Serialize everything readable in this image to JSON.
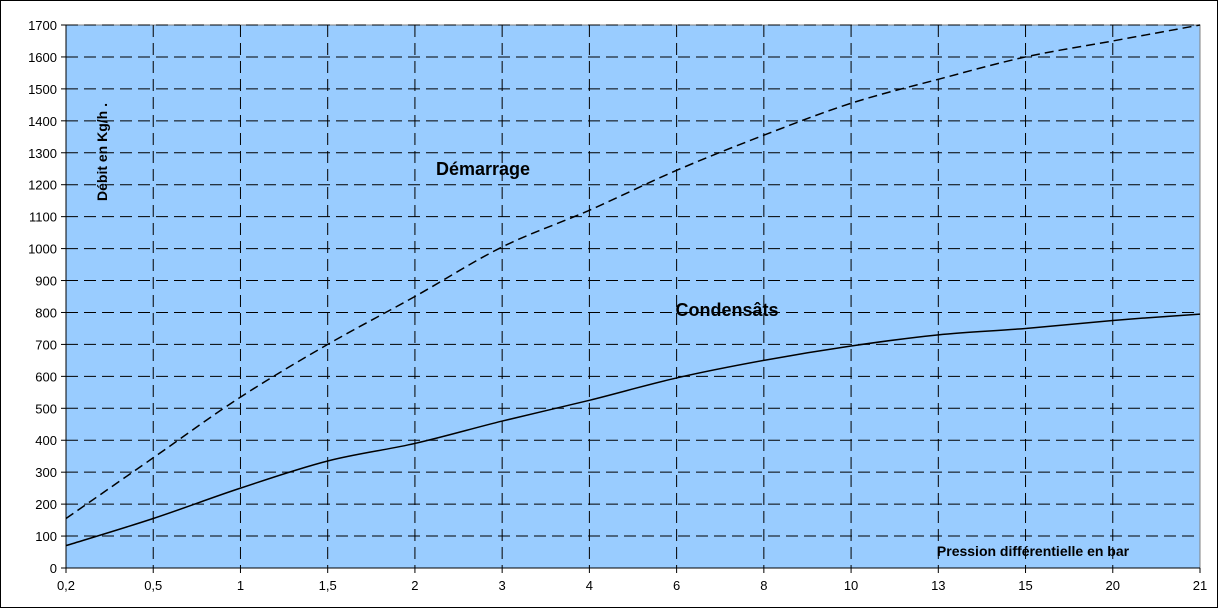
{
  "chart_data": {
    "type": "line",
    "title": "",
    "xlabel": "Pression différentielle en bar",
    "ylabel": "Débit en Kg/h .",
    "x_categories": [
      "0,2",
      "0,5",
      "1",
      "1,5",
      "2",
      "3",
      "4",
      "6",
      "8",
      "10",
      "13",
      "15",
      "20",
      "21"
    ],
    "ylim": [
      0,
      1700
    ],
    "yticks": [
      "0",
      "100",
      "200",
      "300",
      "400",
      "500",
      "600",
      "700",
      "800",
      "900",
      "1000",
      "1100",
      "1200",
      "1300",
      "1400",
      "1500",
      "1600",
      "1700"
    ],
    "grid": true,
    "background_color": "#99ccff",
    "series": [
      {
        "name": "Démarrage",
        "line_style": "dashed",
        "values": [
          155,
          345,
          535,
          700,
          850,
          1005,
          1120,
          1245,
          1355,
          1455,
          1530,
          1600,
          1650,
          1700
        ]
      },
      {
        "name": "Condensâts",
        "line_style": "solid",
        "values": [
          70,
          155,
          250,
          335,
          390,
          460,
          525,
          595,
          650,
          695,
          730,
          750,
          775,
          795
        ]
      }
    ]
  }
}
